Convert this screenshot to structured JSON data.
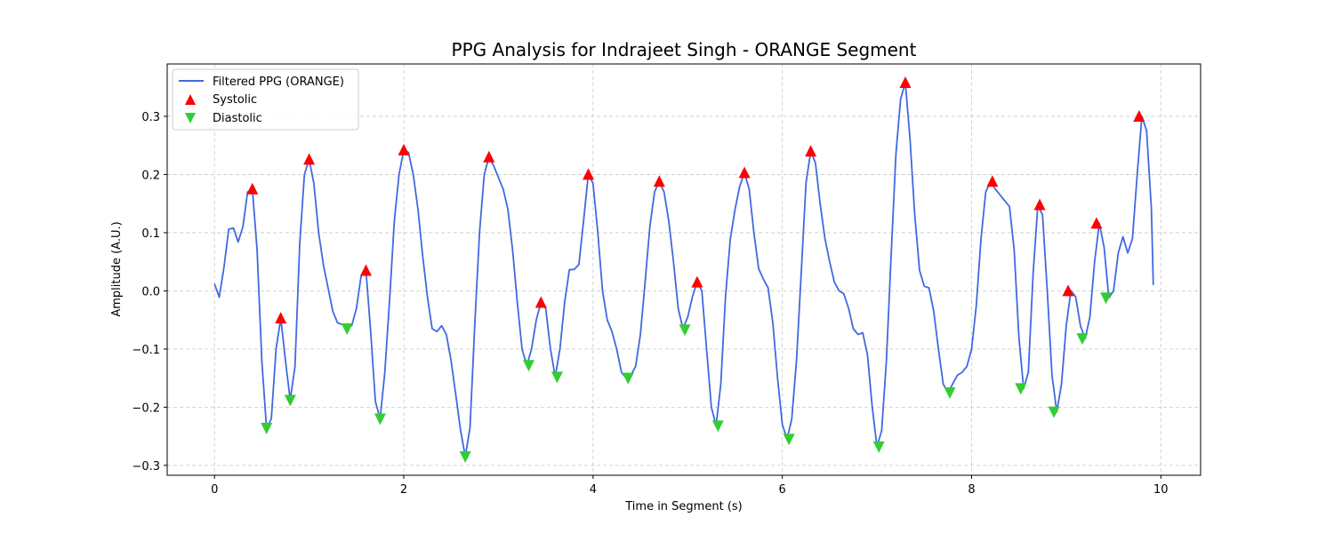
{
  "chart_data": {
    "type": "line",
    "title": "PPG Analysis for Indrajeet Singh - ORANGE Segment",
    "xlabel": "Time in Segment (s)",
    "ylabel": "Amplitude (A.U.)",
    "xlim": [
      -0.5,
      10.42
    ],
    "ylim": [
      -0.317,
      0.39
    ],
    "xticks": [
      0,
      2,
      4,
      6,
      8,
      10
    ],
    "xtick_labels": [
      "0",
      "2",
      "4",
      "6",
      "8",
      "10"
    ],
    "yticks": [
      -0.3,
      -0.2,
      -0.1,
      0.0,
      0.1,
      0.2,
      0.3
    ],
    "ytick_labels": [
      "−0.3",
      "−0.2",
      "−0.1",
      "0.0",
      "0.1",
      "0.2",
      "0.3"
    ],
    "grid": true,
    "legend_position": "top-left",
    "series": [
      {
        "name": "Filtered PPG (ORANGE)",
        "kind": "line",
        "color": "#4169e1",
        "x": [
          0.0,
          0.05,
          0.1,
          0.15,
          0.2,
          0.25,
          0.3,
          0.35,
          0.4,
          0.45,
          0.5,
          0.55,
          0.6,
          0.65,
          0.7,
          0.75,
          0.8,
          0.85,
          0.9,
          0.95,
          1.0,
          1.05,
          1.1,
          1.15,
          1.2,
          1.25,
          1.3,
          1.35,
          1.4,
          1.45,
          1.5,
          1.55,
          1.6,
          1.65,
          1.7,
          1.75,
          1.8,
          1.85,
          1.9,
          1.95,
          2.0,
          2.05,
          2.1,
          2.15,
          2.2,
          2.25,
          2.3,
          2.35,
          2.4,
          2.45,
          2.5,
          2.55,
          2.6,
          2.65,
          2.7,
          2.75,
          2.8,
          2.85,
          2.9,
          2.95,
          3.0,
          3.05,
          3.1,
          3.15,
          3.2,
          3.25,
          3.3,
          3.35,
          3.4,
          3.45,
          3.5,
          3.55,
          3.6,
          3.65,
          3.7,
          3.75,
          3.8,
          3.85,
          3.9,
          3.95,
          4.0,
          4.05,
          4.1,
          4.15,
          4.2,
          4.25,
          4.3,
          4.35,
          4.4,
          4.45,
          4.5,
          4.55,
          4.6,
          4.65,
          4.7,
          4.75,
          4.8,
          4.85,
          4.9,
          4.95,
          5.0,
          5.05,
          5.1,
          5.15,
          5.2,
          5.25,
          5.3,
          5.35,
          5.4,
          5.45,
          5.5,
          5.55,
          5.6,
          5.65,
          5.7,
          5.75,
          5.8,
          5.85,
          5.9,
          5.95,
          6.0,
          6.05,
          6.1,
          6.15,
          6.2,
          6.25,
          6.3,
          6.35,
          6.4,
          6.45,
          6.5,
          6.55,
          6.6,
          6.65,
          6.7,
          6.75,
          6.8,
          6.85,
          6.9,
          6.95,
          7.0,
          7.05,
          7.1,
          7.15,
          7.2,
          7.25,
          7.3,
          7.35,
          7.4,
          7.45,
          7.5,
          7.55,
          7.6,
          7.65,
          7.7,
          7.75,
          7.8,
          7.85,
          7.9,
          7.95,
          8.0,
          8.05,
          8.1,
          8.15,
          8.2,
          8.25,
          8.3,
          8.35,
          8.4,
          8.45,
          8.5,
          8.55,
          8.6,
          8.65,
          8.7,
          8.75,
          8.8,
          8.85,
          8.9,
          8.95,
          9.0,
          9.05,
          9.1,
          9.15,
          9.2,
          9.25,
          9.3,
          9.35,
          9.4,
          9.45,
          9.5,
          9.55,
          9.6,
          9.65,
          9.7,
          9.75,
          9.8,
          9.85,
          9.9,
          9.92
        ],
        "y": [
          0.012,
          -0.011,
          0.04,
          0.106,
          0.108,
          0.084,
          0.11,
          0.17,
          0.175,
          0.07,
          -0.12,
          -0.236,
          -0.22,
          -0.1,
          -0.047,
          -0.12,
          -0.188,
          -0.13,
          0.08,
          0.2,
          0.226,
          0.185,
          0.1,
          0.045,
          0.005,
          -0.035,
          -0.055,
          -0.058,
          -0.06,
          -0.06,
          -0.03,
          0.026,
          0.035,
          -0.07,
          -0.19,
          -0.22,
          -0.14,
          -0.015,
          0.12,
          0.2,
          0.242,
          0.238,
          0.2,
          0.14,
          0.06,
          -0.01,
          -0.065,
          -0.07,
          -0.06,
          -0.075,
          -0.12,
          -0.18,
          -0.24,
          -0.285,
          -0.235,
          -0.06,
          0.1,
          0.2,
          0.23,
          0.215,
          0.195,
          0.175,
          0.14,
          0.07,
          -0.02,
          -0.1,
          -0.128,
          -0.1,
          -0.05,
          -0.02,
          -0.03,
          -0.1,
          -0.148,
          -0.1,
          -0.02,
          0.036,
          0.037,
          0.045,
          0.12,
          0.2,
          0.185,
          0.1,
          0.0,
          -0.05,
          -0.07,
          -0.1,
          -0.14,
          -0.15,
          -0.145,
          -0.13,
          -0.075,
          0.015,
          0.11,
          0.17,
          0.188,
          0.17,
          0.12,
          0.05,
          -0.03,
          -0.065,
          -0.045,
          -0.01,
          0.015,
          0.0,
          -0.1,
          -0.2,
          -0.232,
          -0.16,
          -0.01,
          0.088,
          0.14,
          0.18,
          0.203,
          0.175,
          0.1,
          0.038,
          0.02,
          0.005,
          -0.055,
          -0.15,
          -0.23,
          -0.255,
          -0.22,
          -0.12,
          0.03,
          0.185,
          0.24,
          0.22,
          0.15,
          0.09,
          0.05,
          0.015,
          0.0,
          -0.005,
          -0.03,
          -0.065,
          -0.075,
          -0.072,
          -0.11,
          -0.2,
          -0.268,
          -0.24,
          -0.12,
          0.06,
          0.235,
          0.33,
          0.358,
          0.26,
          0.13,
          0.035,
          0.008,
          0.005,
          -0.035,
          -0.1,
          -0.16,
          -0.175,
          -0.16,
          -0.145,
          -0.14,
          -0.13,
          -0.1,
          -0.025,
          0.09,
          0.17,
          0.188,
          0.175,
          0.165,
          0.155,
          0.145,
          0.07,
          -0.08,
          -0.168,
          -0.14,
          0.03,
          0.148,
          0.13,
          0.0,
          -0.145,
          -0.208,
          -0.16,
          -0.06,
          0.0,
          -0.01,
          -0.06,
          -0.082,
          -0.045,
          0.05,
          0.116,
          0.075,
          -0.012,
          0.0,
          0.065,
          0.093,
          0.065,
          0.09,
          0.2,
          0.3,
          0.275,
          0.14,
          0.01
        ]
      },
      {
        "name": "Systolic",
        "kind": "markers",
        "marker": "triangle-up",
        "color": "#ff0000",
        "x": [
          0.4,
          0.7,
          1.0,
          1.6,
          2.0,
          2.9,
          3.45,
          3.95,
          4.7,
          5.1,
          5.6,
          6.3,
          7.3,
          8.22,
          8.72,
          9.02,
          9.32,
          9.77
        ],
        "y": [
          0.175,
          -0.047,
          0.226,
          0.035,
          0.242,
          0.23,
          -0.02,
          0.2,
          0.188,
          0.015,
          0.203,
          0.24,
          0.358,
          0.188,
          0.148,
          0.0,
          0.116,
          0.3
        ]
      },
      {
        "name": "Diastolic",
        "kind": "markers",
        "marker": "triangle-down",
        "color": "#32cd32",
        "x": [
          0.55,
          0.8,
          1.4,
          1.75,
          2.65,
          3.32,
          3.62,
          4.37,
          4.97,
          5.32,
          6.07,
          7.02,
          7.77,
          8.52,
          8.87,
          9.17,
          9.42
        ],
        "y": [
          -0.236,
          -0.188,
          -0.065,
          -0.22,
          -0.285,
          -0.128,
          -0.148,
          -0.15,
          -0.067,
          -0.232,
          -0.255,
          -0.268,
          -0.175,
          -0.168,
          -0.208,
          -0.082,
          -0.012
        ]
      }
    ]
  }
}
